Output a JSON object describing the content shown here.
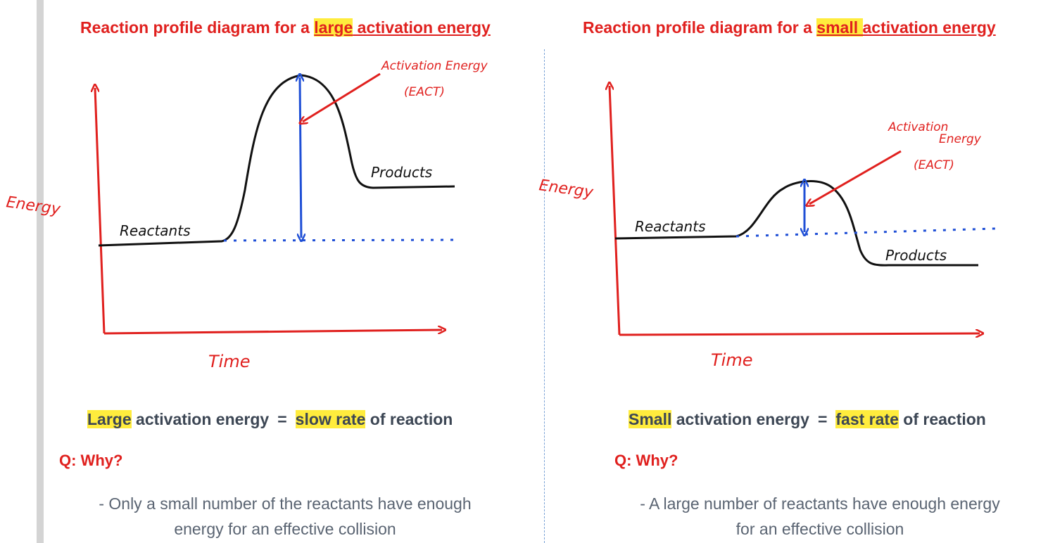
{
  "left": {
    "title_prefix": "Reaction profile diagram for a ",
    "title_highlight": "large",
    "title_suffix": " activation energy",
    "axis_y_label": "Energy",
    "axis_x_label": "Time",
    "reactants_label": "Reactants",
    "products_label": "Products",
    "activation_label": "Activation Energy",
    "activation_abbrev": "(EACT)",
    "summary_highlight_1": "Large",
    "summary_text_1": " activation energy",
    "summary_equals": "=",
    "summary_highlight_2": "slow rate",
    "summary_text_2": " of reaction",
    "question": "Q: Why?",
    "answer_line_1": "- Only a small number of the reactants have enough",
    "answer_line_2": "energy for an effective collision"
  },
  "right": {
    "title_prefix": "Reaction profile diagram for a ",
    "title_highlight": "small ",
    "title_suffix": "activation energy",
    "axis_y_label": "Energy",
    "axis_x_label": "Time",
    "reactants_label": "Reactants",
    "products_label": "Products",
    "activation_label_1": "Activation",
    "activation_label_2": "Energy",
    "activation_abbrev": "(EACT)",
    "summary_highlight_1": "Small",
    "summary_text_1": " activation energy",
    "summary_equals": "=",
    "summary_highlight_2": "fast rate",
    "summary_text_2": " of reaction",
    "question": "Q: Why?",
    "answer_line_1": "- A large number of reactants have enough energy",
    "answer_line_2": "for an effective collision"
  },
  "colors": {
    "title_red": "#e0201e",
    "axis_red": "#e0201e",
    "curve_black": "#111111",
    "arrow_blue": "#1f4fd6",
    "highlight_yellow": "#ffec3d",
    "summary_text": "#3c4654",
    "answer_text": "#5a6472"
  }
}
